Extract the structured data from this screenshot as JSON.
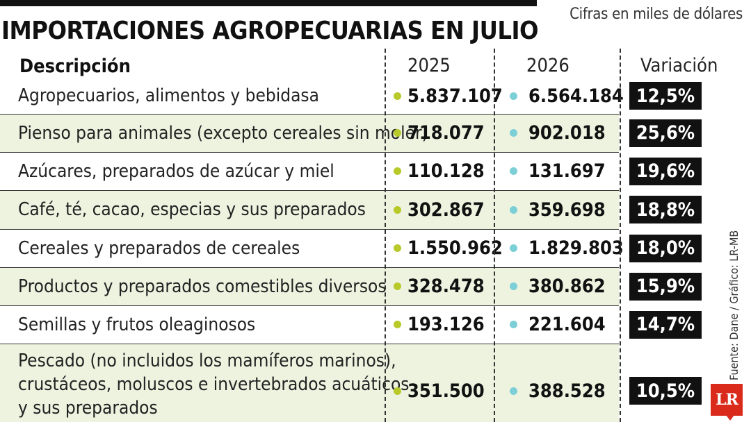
{
  "header": {
    "title": "IMPORTACIONES AGROPECUARIAS EN JULIO",
    "units": "Cifras en miles de dólares"
  },
  "columns": {
    "description": "Descripción",
    "y2025": "2025",
    "y2026": "2026",
    "variation": "Variación"
  },
  "footer": {
    "source": "Fuente: Dane / Gráfico: LR-MB",
    "logo": "LR"
  },
  "colors": {
    "dot_2025": "#b8c92a",
    "dot_2026": "#7ccfd6",
    "row_shade": "#eef3e0",
    "variation_box": "#111111",
    "logo": "#d92a1c"
  },
  "chart_data": {
    "type": "table",
    "title": "IMPORTACIONES AGROPECUARIAS EN JULIO",
    "subtitle": "Cifras en miles de dólares",
    "columns": [
      "Descripción",
      "2025",
      "2026",
      "Variación"
    ],
    "rows": [
      {
        "description": "Agropecuarios, alimentos y bebidasa",
        "v2025": "5.837.107",
        "v2026": "6.564.184",
        "variation": "12,5%"
      },
      {
        "description": "Pienso para animales (excepto cereales sin moler)",
        "v2025": "718.077",
        "v2026": "902.018",
        "variation": "25,6%"
      },
      {
        "description": "Azúcares, preparados de azúcar y miel",
        "v2025": "110.128",
        "v2026": "131.697",
        "variation": "19,6%"
      },
      {
        "description": "Café, té, cacao, especias y sus preparados",
        "v2025": "302.867",
        "v2026": "359.698",
        "variation": "18,8%"
      },
      {
        "description": "Cereales y preparados de cereales",
        "v2025": "1.550.962",
        "v2026": "1.829.803",
        "variation": "18,0%"
      },
      {
        "description": "Productos y preparados comestibles diversos",
        "v2025": "328.478",
        "v2026": "380.862",
        "variation": "15,9%"
      },
      {
        "description": "Semillas y frutos oleaginosos",
        "v2025": "193.126",
        "v2026": "221.604",
        "variation": "14,7%"
      },
      {
        "description": "Pescado (no incluidos los mamíferos marinos),\ncrustáceos, moluscos e invertebrados acuáticos\ny sus preparados",
        "v2025": "351.500",
        "v2026": "388.528",
        "variation": "10,5%"
      }
    ]
  }
}
